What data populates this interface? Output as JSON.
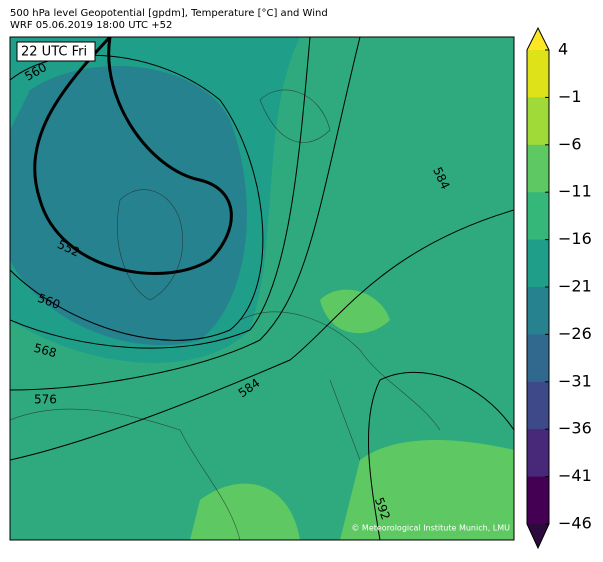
{
  "header": {
    "title": "500 hPa level Geopotential [gpdm], Temperature [°C] and Wind",
    "subtitle": "WRF 05.06.2019 18:00 UTC +52"
  },
  "time_label": "22 UTC Fri",
  "contours": [
    {
      "label": "560"
    },
    {
      "label": "552"
    },
    {
      "label": "560"
    },
    {
      "label": "568"
    },
    {
      "label": "576"
    },
    {
      "label": "584"
    },
    {
      "label": "584"
    },
    {
      "label": "592"
    }
  ],
  "credit": "© Meteorological Institute Munich, LMU",
  "colorbar": {
    "lim": [
      -46,
      4
    ],
    "ticks": [
      4,
      {
        "value": -1,
        "label": "−1"
      },
      {
        "value": -6,
        "label": "−6"
      },
      {
        "value": -11,
        "label": "−11"
      },
      {
        "value": -16,
        "label": "−16"
      },
      {
        "value": -21,
        "label": "−21"
      },
      {
        "value": -26,
        "label": "−26"
      },
      {
        "value": -31,
        "label": "−31"
      },
      {
        "value": -36,
        "label": "−36"
      },
      {
        "value": -41,
        "label": "−41"
      },
      {
        "value": -46,
        "label": "−46"
      }
    ],
    "colors": [
      "#dde318",
      "#a0da39",
      "#5ec962",
      "#35b779",
      "#1f9e89",
      "#26828e",
      "#31688e",
      "#3e4989",
      "#482878",
      "#440154"
    ],
    "extend_colors": [
      "#fde725",
      "#2d0a3e"
    ]
  }
}
